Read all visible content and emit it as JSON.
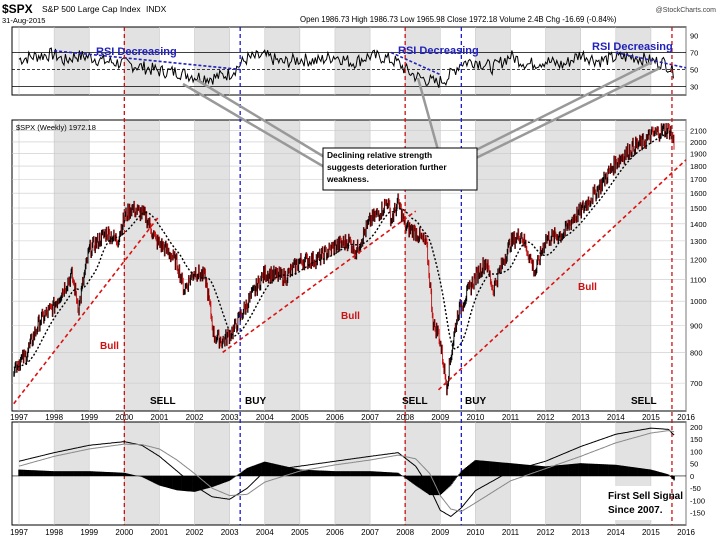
{
  "header": {
    "symbol": "$SPX",
    "name": "S&P 500 Large Cap Index",
    "exchange": "INDX",
    "date": "31-Aug-2015",
    "quote": "Open 1986.73  High 1986.73  Low 1965.98  Close 1972.18  Volume 2.4B  Chg -16.69 (-0.84%)",
    "watermark": "@StockCharts.com",
    "price_label": "$SPX (Weekly) 1972.18"
  },
  "colors": {
    "price": "#000000",
    "ma": "#000000",
    "bull_trend": "#dd1111",
    "rsi_trend": "#2222bb",
    "sell_line": "#cc1111",
    "buy_line": "#1a1acc",
    "shade": "#e2e2e2",
    "callout_line": "#8a8a8a"
  },
  "chart_data": [
    {
      "type": "line",
      "panel": "rsi",
      "ylim": [
        20,
        100
      ],
      "yticks": [
        30,
        50,
        70,
        90
      ],
      "reference_lines": [
        30,
        50,
        70
      ],
      "annotations": [
        "RSI Decreasing",
        "RSI Decreasing",
        "RSI Decreasing"
      ],
      "series": [
        {
          "x": [
            1997.0,
            1997.5,
            1998.0,
            1998.3,
            1998.6,
            1999.0,
            1999.4,
            1999.8,
            2000.0,
            2000.5,
            2001.0,
            2001.5,
            2002.0,
            2002.5,
            2003.0,
            2003.5,
            2004.0,
            2004.5,
            2005.0,
            2005.5,
            2006.0,
            2006.5,
            2007.0,
            2007.4,
            2007.8,
            2008.0,
            2008.3,
            2008.6,
            2008.9,
            2009.2,
            2009.6,
            2010.0,
            2010.5,
            2011.0,
            2011.5,
            2012.0,
            2012.5,
            2013.0,
            2013.5,
            2014.0,
            2014.5,
            2015.0,
            2015.4,
            2015.67
          ],
          "values": [
            62,
            66,
            68,
            60,
            66,
            65,
            60,
            58,
            57,
            53,
            48,
            47,
            42,
            40,
            45,
            63,
            66,
            58,
            62,
            60,
            66,
            58,
            66,
            64,
            58,
            50,
            42,
            38,
            34,
            40,
            58,
            60,
            52,
            66,
            56,
            60,
            55,
            68,
            60,
            64,
            65,
            60,
            58,
            46
          ]
        }
      ]
    },
    {
      "type": "line",
      "panel": "price",
      "title": "$SPX (Weekly) 1972.18",
      "xlim": [
        1996.8,
        2016.0
      ],
      "ylim": [
        620,
        2200
      ],
      "xticks": [
        "1997",
        "1998",
        "1999",
        "2000",
        "2001",
        "2002",
        "2003",
        "2004",
        "2005",
        "2006",
        "2007",
        "2008",
        "2009",
        "2010",
        "2011",
        "2012",
        "2013",
        "2014",
        "2015",
        "2016"
      ],
      "yticks": [
        700,
        800,
        900,
        1000,
        1100,
        1200,
        1300,
        1400,
        1500,
        1600,
        1700,
        1800,
        1900,
        2000,
        2100
      ],
      "series": [
        {
          "x": [
            1996.85,
            1997.2,
            1997.6,
            1998.0,
            1998.5,
            1998.7,
            1999.0,
            1999.5,
            1999.8,
            2000.0,
            2000.2,
            2000.6,
            2000.9,
            2001.2,
            2001.5,
            2001.7,
            2002.0,
            2002.3,
            2002.55,
            2002.8,
            2003.1,
            2003.5,
            2004.0,
            2004.6,
            2005.0,
            2005.5,
            2006.0,
            2006.4,
            2006.6,
            2007.0,
            2007.3,
            2007.5,
            2007.6,
            2007.8,
            2008.0,
            2008.3,
            2008.6,
            2008.8,
            2008.95,
            2009.18,
            2009.5,
            2010.0,
            2010.3,
            2010.5,
            2011.0,
            2011.3,
            2011.7,
            2012.0,
            2012.5,
            2012.8,
            2013.0,
            2013.5,
            2014.0,
            2014.5,
            2014.8,
            2015.0,
            2015.4,
            2015.55,
            2015.67
          ],
          "values": [
            750,
            790,
            920,
            980,
            1120,
            970,
            1250,
            1350,
            1300,
            1440,
            1500,
            1450,
            1300,
            1250,
            1180,
            1050,
            1140,
            1110,
            860,
            840,
            880,
            990,
            1130,
            1110,
            1190,
            1200,
            1270,
            1300,
            1240,
            1420,
            1480,
            1550,
            1420,
            1540,
            1380,
            1350,
            1280,
            900,
            870,
            690,
            950,
            1110,
            1190,
            1050,
            1290,
            1340,
            1130,
            1310,
            1340,
            1440,
            1480,
            1630,
            1830,
            1960,
            2000,
            2060,
            2110,
            2100,
            1972
          ]
        }
      ],
      "annotations": [
        "Bull",
        "Bull",
        "Bull",
        "SELL",
        "BUY",
        "SELL",
        "BUY",
        "SELL",
        "Declining relative strength suggests deterioration further weakness."
      ]
    },
    {
      "type": "area",
      "panel": "macd",
      "ylim": [
        -200,
        220
      ],
      "yticks": [
        -150,
        -100,
        -50,
        0,
        50,
        100,
        150,
        200
      ],
      "series": [
        {
          "x": [
            1997.0,
            1998.0,
            1999.0,
            2000.0,
            2000.5,
            2001.0,
            2001.5,
            2002.0,
            2002.5,
            2003.0,
            2003.5,
            2004.0,
            2005.0,
            2006.0,
            2007.0,
            2007.8,
            2008.3,
            2008.7,
            2009.0,
            2009.3,
            2009.6,
            2010.0,
            2011.0,
            2012.0,
            2013.0,
            2014.0,
            2015.0,
            2015.5,
            2015.67
          ],
          "values": [
            60,
            95,
            125,
            140,
            125,
            80,
            20,
            -40,
            -85,
            -95,
            -50,
            20,
            40,
            60,
            80,
            95,
            40,
            -50,
            -140,
            -165,
            -130,
            -60,
            20,
            60,
            120,
            170,
            195,
            190,
            165
          ]
        },
        {
          "x": [
            1997.0,
            1998.0,
            1999.0,
            2000.0,
            2000.5,
            2001.0,
            2001.5,
            2002.0,
            2002.5,
            2003.0,
            2003.5,
            2004.0,
            2005.0,
            2006.0,
            2007.0,
            2007.8,
            2008.3,
            2008.7,
            2009.0,
            2009.3,
            2009.6,
            2010.0,
            2011.0,
            2012.0,
            2013.0,
            2014.0,
            2015.0,
            2015.5,
            2015.67
          ],
          "values": [
            40,
            80,
            110,
            130,
            128,
            110,
            65,
            10,
            -50,
            -80,
            -75,
            -25,
            20,
            45,
            65,
            85,
            70,
            10,
            -80,
            -135,
            -145,
            -110,
            -20,
            30,
            80,
            135,
            175,
            185,
            180
          ]
        }
      ],
      "annotations": [
        "First Sell Signal Since 2007."
      ]
    }
  ]
}
